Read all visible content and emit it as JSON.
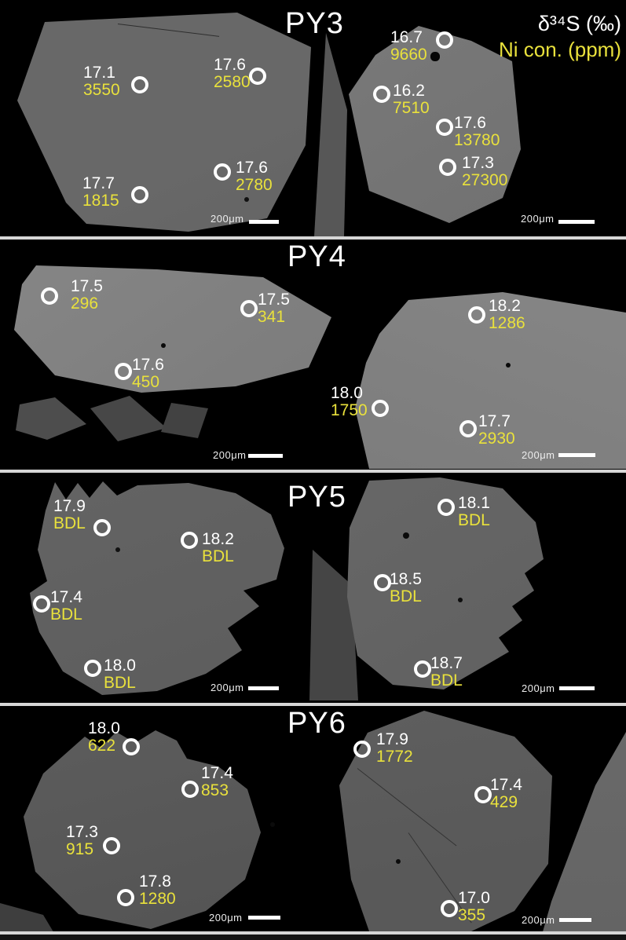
{
  "figure": {
    "type": "SEM pyrite grain images with in-situ analysis spots",
    "legend": {
      "delta34s": "δ³⁴S (‰)",
      "ni": "Ni con. (ppm)"
    },
    "scale_label": "200μm",
    "colors": {
      "d34s_text": "#ffffff",
      "ni_text": "#e9e13c",
      "background": "#000000",
      "divider": "#d6d6d6"
    },
    "panels": [
      {
        "title": "PY3",
        "spots": [
          {
            "d34s": "17.1",
            "ni": "3550",
            "circle": [
              178,
              108
            ],
            "text": [
              106,
              82
            ]
          },
          {
            "d34s": "17.6",
            "ni": "2580",
            "circle": [
              328,
              97
            ],
            "text": [
              272,
              72
            ]
          },
          {
            "d34s": "17.6",
            "ni": "2780",
            "circle": [
              283,
              219
            ],
            "text": [
              300,
              203
            ]
          },
          {
            "d34s": "17.7",
            "ni": "1815",
            "circle": [
              178,
              248
            ],
            "text": [
              105,
              223
            ]
          },
          {
            "d34s": "16.7",
            "ni": "9660",
            "circle": [
              566,
              51
            ],
            "text": [
              497,
              37
            ]
          },
          {
            "d34s": "16.2",
            "ni": "7510",
            "circle": [
              486,
              120
            ],
            "text": [
              500,
              105
            ]
          },
          {
            "d34s": "17.6",
            "ni": "13780",
            "circle": [
              566,
              162
            ],
            "text": [
              578,
              146
            ]
          },
          {
            "d34s": "17.3",
            "ni": "27300",
            "circle": [
              570,
              213
            ],
            "text": [
              588,
              197
            ]
          }
        ]
      },
      {
        "title": "PY4",
        "spots": [
          {
            "d34s": "17.5",
            "ni": "296",
            "circle": [
              63,
              377
            ],
            "text": [
              90,
              354
            ]
          },
          {
            "d34s": "17.5",
            "ni": "341",
            "circle": [
              317,
              393
            ],
            "text": [
              328,
              371
            ]
          },
          {
            "d34s": "17.6",
            "ni": "450",
            "circle": [
              157,
              473
            ],
            "text": [
              168,
              454
            ]
          },
          {
            "d34s": "18.2",
            "ni": "1286",
            "circle": [
              607,
              401
            ],
            "text": [
              622,
              379
            ]
          },
          {
            "d34s": "18.0",
            "ni": "1750",
            "circle": [
              484,
              520
            ],
            "text": [
              421,
              490
            ]
          },
          {
            "d34s": "17.7",
            "ni": "2930",
            "circle": [
              596,
              546
            ],
            "text": [
              609,
              526
            ]
          }
        ]
      },
      {
        "title": "PY5",
        "spots": [
          {
            "d34s": "17.9",
            "ni": "BDL",
            "circle": [
              130,
              672
            ],
            "text": [
              68,
              634
            ]
          },
          {
            "d34s": "18.2",
            "ni": "BDL",
            "circle": [
              241,
              688
            ],
            "text": [
              257,
              676
            ]
          },
          {
            "d34s": "17.4",
            "ni": "BDL",
            "circle": [
              53,
              769
            ],
            "text": [
              64,
              750
            ]
          },
          {
            "d34s": "18.0",
            "ni": "BDL",
            "circle": [
              118,
              851
            ],
            "text": [
              132,
              837
            ]
          },
          {
            "d34s": "18.1",
            "ni": "BDL",
            "circle": [
              568,
              646
            ],
            "text": [
              583,
              630
            ]
          },
          {
            "d34s": "18.5",
            "ni": "BDL",
            "circle": [
              487,
              742
            ],
            "text": [
              496,
              727
            ]
          },
          {
            "d34s": "18.7",
            "ni": "BDL",
            "circle": [
              538,
              852
            ],
            "text": [
              548,
              834
            ]
          }
        ]
      },
      {
        "title": "PY6",
        "spots": [
          {
            "d34s": "18.0",
            "ni": "622",
            "circle": [
              167,
              951
            ],
            "text": [
              112,
              917
            ]
          },
          {
            "d34s": "17.4",
            "ni": "853",
            "circle": [
              242,
              1005
            ],
            "text": [
              256,
              974
            ]
          },
          {
            "d34s": "17.3",
            "ni": "915",
            "circle": [
              142,
              1077
            ],
            "text": [
              84,
              1049
            ]
          },
          {
            "d34s": "17.8",
            "ni": "1280",
            "circle": [
              160,
              1143
            ],
            "text": [
              177,
              1112
            ]
          },
          {
            "d34s": "17.9",
            "ni": "1772",
            "circle": [
              461,
              954
            ],
            "text": [
              479,
              931
            ]
          },
          {
            "d34s": "17.4",
            "ni": "429",
            "circle": [
              615,
              1012
            ],
            "text": [
              624,
              989
            ]
          },
          {
            "d34s": "17.0",
            "ni": "355",
            "circle": [
              572,
              1157
            ],
            "text": [
              583,
              1133
            ]
          }
        ]
      }
    ]
  }
}
